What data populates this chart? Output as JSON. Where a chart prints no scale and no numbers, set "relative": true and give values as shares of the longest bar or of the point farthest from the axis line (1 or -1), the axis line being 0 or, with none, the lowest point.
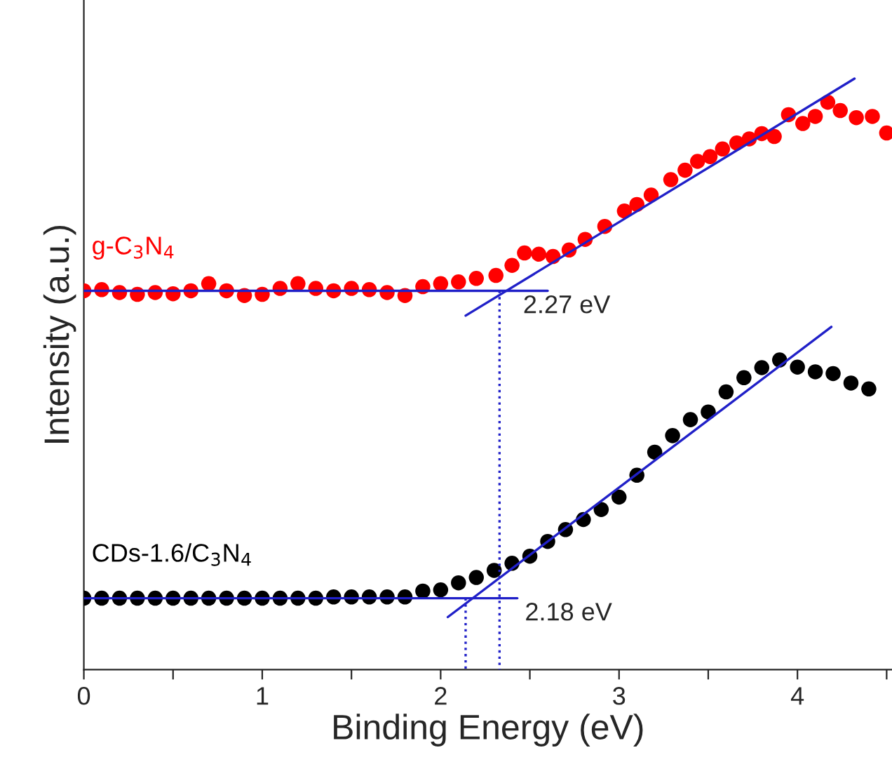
{
  "chart_data": {
    "type": "scatter",
    "relative": true,
    "xlabel": "Binding Energy (eV)",
    "ylabel": "Intensity (a.u.)",
    "xlim": [
      0,
      4.53
    ],
    "xticks": [
      0,
      {
        "value": 0.5,
        "label": null
      },
      1,
      {
        "value": 1.5,
        "label": null
      },
      2,
      {
        "value": 2.5,
        "label": null
      },
      3,
      {
        "value": 3.5,
        "label": null
      },
      4,
      {
        "value": 4.5,
        "label": null
      }
    ],
    "tick_labels": "x",
    "grid": false,
    "legend": false,
    "series": [
      {
        "name": "g-C$_{3}$N$_{4}$",
        "color": "#ff0000",
        "marker": "circle",
        "x": [
          0,
          0.1,
          0.2,
          0.3,
          0.4,
          0.5,
          0.6,
          0.7,
          0.8,
          0.9,
          1.0,
          1.1,
          1.2,
          1.3,
          1.4,
          1.5,
          1.6,
          1.7,
          1.8,
          1.9,
          2.0,
          2.1,
          2.2,
          2.31,
          2.4,
          2.47,
          2.55,
          2.63,
          2.72,
          2.81,
          2.92,
          3.03,
          3.1,
          3.18,
          3.29,
          3.37,
          3.44,
          3.51,
          3.58,
          3.66,
          3.73,
          3.8,
          3.87,
          3.95,
          4.03,
          4.1,
          4.17,
          4.24,
          4.33,
          4.42,
          4.5
        ],
        "values": [
          0.641,
          0.643,
          0.638,
          0.635,
          0.638,
          0.636,
          0.641,
          0.653,
          0.641,
          0.633,
          0.635,
          0.645,
          0.653,
          0.645,
          0.641,
          0.645,
          0.643,
          0.638,
          0.633,
          0.648,
          0.653,
          0.656,
          0.662,
          0.667,
          0.684,
          0.705,
          0.703,
          0.699,
          0.71,
          0.728,
          0.75,
          0.776,
          0.787,
          0.803,
          0.829,
          0.845,
          0.86,
          0.868,
          0.881,
          0.891,
          0.898,
          0.907,
          0.902,
          0.939,
          0.924,
          0.936,
          0.96,
          0.946,
          0.934,
          0.936,
          0.908
        ]
      },
      {
        "name": "CDs-1.6/C$_{3}$N$_{4}$",
        "color": "#000000",
        "marker": "circle",
        "x": [
          0,
          0.1,
          0.2,
          0.3,
          0.4,
          0.5,
          0.6,
          0.7,
          0.8,
          0.9,
          1.0,
          1.1,
          1.2,
          1.3,
          1.4,
          1.5,
          1.6,
          1.7,
          1.8,
          1.9,
          2.0,
          2.1,
          2.2,
          2.3,
          2.4,
          2.5,
          2.6,
          2.7,
          2.8,
          2.9,
          3.0,
          3.1,
          3.2,
          3.3,
          3.4,
          3.5,
          3.6,
          3.7,
          3.8,
          3.9,
          4.0,
          4.1,
          4.2,
          4.3,
          4.4
        ],
        "values": [
          0.121,
          0.121,
          0.121,
          0.121,
          0.121,
          0.121,
          0.121,
          0.121,
          0.121,
          0.121,
          0.121,
          0.121,
          0.121,
          0.121,
          0.123,
          0.123,
          0.123,
          0.123,
          0.123,
          0.133,
          0.135,
          0.147,
          0.156,
          0.168,
          0.18,
          0.192,
          0.217,
          0.237,
          0.254,
          0.271,
          0.292,
          0.329,
          0.368,
          0.396,
          0.423,
          0.436,
          0.47,
          0.494,
          0.511,
          0.524,
          0.512,
          0.504,
          0.501,
          0.485,
          0.475
        ]
      },
      {
        "type": "line",
        "color": "#2020c8",
        "line_style": "solid",
        "x": [
          0,
          2.6
        ],
        "values": [
          0.641,
          0.641
        ]
      },
      {
        "type": "line",
        "color": "#2020c8",
        "line_style": "solid",
        "x": [
          2.14,
          4.32
        ],
        "values": [
          0.599,
          1.0
        ]
      },
      {
        "type": "line",
        "color": "#2020c8",
        "line_style": "solid",
        "x": [
          0,
          2.43
        ],
        "values": [
          0.121,
          0.121
        ]
      },
      {
        "type": "line",
        "color": "#2020c8",
        "line_style": "solid",
        "x": [
          2.04,
          4.19
        ],
        "values": [
          0.089,
          0.58
        ]
      },
      {
        "type": "line",
        "color": "#2020c8",
        "line_style": "dotted",
        "x": [
          2.33,
          2.33
        ],
        "values": [
          0.641,
          0
        ]
      },
      {
        "type": "line",
        "color": "#2020c8",
        "line_style": "dotted",
        "x": [
          2.14,
          2.14
        ],
        "values": [
          0.121,
          0
        ]
      }
    ],
    "annotations": [
      {
        "text": "2.27 eV",
        "x": 2.44,
        "y": 0.641
      },
      {
        "text": "2.18 eV",
        "x": 2.45,
        "y": 0.121
      }
    ]
  }
}
